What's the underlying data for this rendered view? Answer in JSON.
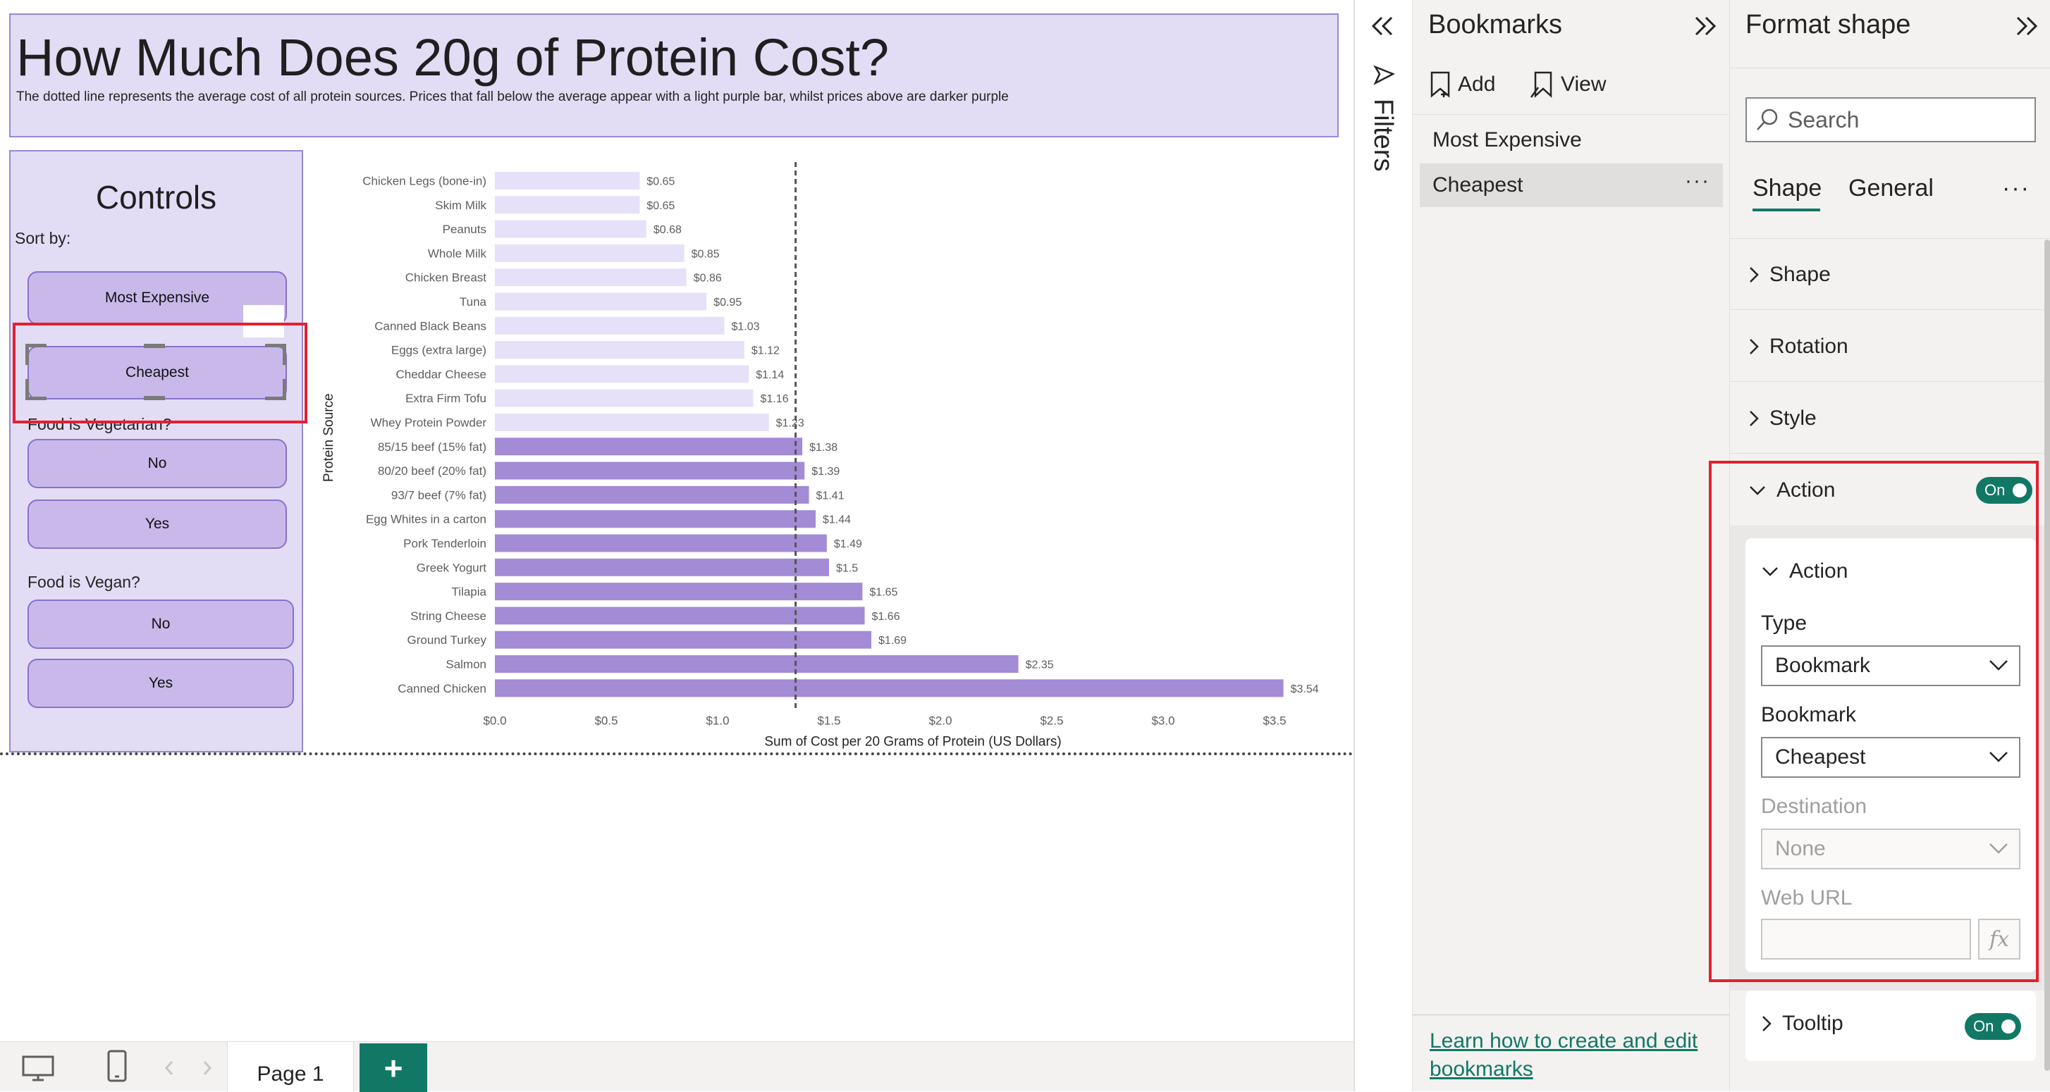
{
  "report": {
    "title": "How Much Does 20g of Protein Cost?",
    "subtitle": "The dotted line represents the average cost of all protein sources. Prices that fall below the average appear with a light purple bar, whilst prices above are darker purple"
  },
  "controls": {
    "title": "Controls",
    "sort_label": "Sort by:",
    "sort_most_expensive": "Most Expensive",
    "sort_cheapest": "Cheapest",
    "veg_label": "Food is Vegetarian?",
    "veg_no": "No",
    "veg_yes": "Yes",
    "vegan_label": "Food is Vegan?",
    "vegan_no": "No",
    "vegan_yes": "Yes"
  },
  "chart_data": {
    "type": "bar",
    "orientation": "horizontal",
    "title": "",
    "xlabel": "Sum of Cost per 20 Grams of Protein (US Dollars)",
    "ylabel": "Protein Source",
    "xlim": [
      0,
      3.6
    ],
    "x_ticks": [
      "$0.0",
      "$0.5",
      "$1.0",
      "$1.5",
      "$2.0",
      "$2.5",
      "$3.0",
      "$3.5"
    ],
    "average_line": 1.35,
    "categories": [
      "Chicken Legs (bone-in)",
      "Skim Milk",
      "Peanuts",
      "Whole Milk",
      "Chicken Breast",
      "Tuna",
      "Canned Black Beans",
      "Eggs (extra large)",
      "Cheddar Cheese",
      "Extra Firm Tofu",
      "Whey Protein Powder",
      "85/15 beef (15% fat)",
      "80/20 beef (20% fat)",
      "93/7 beef (7% fat)",
      "Egg Whites in a carton",
      "Pork Tenderloin",
      "Greek Yogurt",
      "Tilapia",
      "String Cheese",
      "Ground Turkey",
      "Salmon",
      "Canned Chicken"
    ],
    "values": [
      0.65,
      0.65,
      0.68,
      0.85,
      0.86,
      0.95,
      1.03,
      1.12,
      1.14,
      1.16,
      1.23,
      1.38,
      1.39,
      1.41,
      1.44,
      1.49,
      1.5,
      1.65,
      1.66,
      1.69,
      2.35,
      3.54
    ],
    "labels": [
      "$0.65",
      "$0.65",
      "$0.68",
      "$0.85",
      "$0.86",
      "$0.95",
      "$1.03",
      "$1.12",
      "$1.14",
      "$1.16",
      "$1.23",
      "$1.38",
      "$1.39",
      "$1.41",
      "$1.44",
      "$1.49",
      "$1.5",
      "$1.65",
      "$1.66",
      "$1.69",
      "$2.35",
      "$3.54"
    ],
    "colors": {
      "below_average": "#e6e1f8",
      "above_average": "#a38bd6",
      "average_line": "#555555"
    }
  },
  "bottom_bar": {
    "page_tab": "Page 1",
    "add_page": "+"
  },
  "filters": {
    "label": "Filters"
  },
  "bookmarks": {
    "title": "Bookmarks",
    "add_label": "Add",
    "view_label": "View",
    "items": [
      "Most Expensive",
      "Cheapest"
    ],
    "more": "···",
    "link_text": "Learn how to create and edit bookmarks"
  },
  "format": {
    "title": "Format shape",
    "search_placeholder": "Search",
    "tab_shape": "Shape",
    "tab_general": "General",
    "more": "···",
    "sections": {
      "shape": "Shape",
      "rotation": "Rotation",
      "style": "Style",
      "action": "Action",
      "tooltip": "Tooltip"
    },
    "action_toggle": "On",
    "tooltip_toggle": "On",
    "action_card_title": "Action",
    "type_label": "Type",
    "type_value": "Bookmark",
    "bookmark_label": "Bookmark",
    "bookmark_value": "Cheapest",
    "destination_label": "Destination",
    "destination_value": "None",
    "web_url_label": "Web URL",
    "fx": "fx"
  },
  "colors": {
    "accent": "#117865",
    "highlight": "#e3202f",
    "panel": "#e3dcf5"
  }
}
